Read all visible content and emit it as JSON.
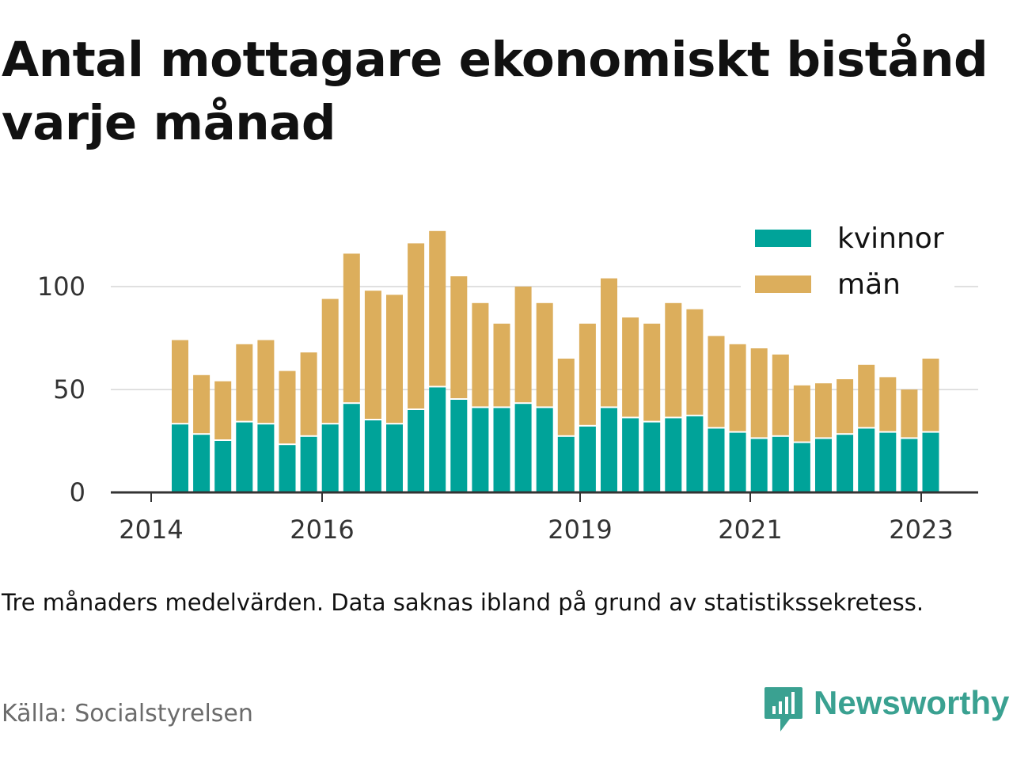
{
  "title": "Antal mottagare ekonomiskt bistånd varje månad",
  "note": "Tre månaders medelvärden. Data saknas ibland på grund av statistikssekretess.",
  "source": "Källa: Socialstyrelsen",
  "brand": "Newsworthy",
  "colors": {
    "kvinnor": "#00a399",
    "man": "#dcae5c",
    "grid": "#e0e0e0",
    "axis": "#333333",
    "brand": "#3aa191"
  },
  "chart_data": {
    "type": "bar",
    "stacked": true,
    "x_ticks": [
      "2014",
      "2016",
      "2019",
      "2021",
      "2023"
    ],
    "y_ticks": [
      0,
      50,
      100
    ],
    "ylim": [
      0,
      130
    ],
    "grid": true,
    "legend_position": "top-right",
    "series": [
      {
        "name": "kvinnor",
        "values": [
          33,
          28,
          25,
          34,
          33,
          23,
          27,
          33,
          43,
          35,
          33,
          40,
          51,
          45,
          41,
          41,
          43,
          41,
          27,
          32,
          41,
          36,
          34,
          36,
          37,
          31,
          29,
          26,
          27,
          24,
          26,
          28,
          31,
          29,
          26,
          29
        ]
      },
      {
        "name": "män",
        "values": [
          41,
          29,
          29,
          38,
          41,
          36,
          41,
          61,
          73,
          63,
          63,
          81,
          76,
          60,
          51,
          41,
          57,
          51,
          38,
          50,
          63,
          49,
          48,
          56,
          52,
          45,
          43,
          44,
          40,
          28,
          27,
          27,
          31,
          27,
          24,
          36
        ]
      }
    ]
  }
}
